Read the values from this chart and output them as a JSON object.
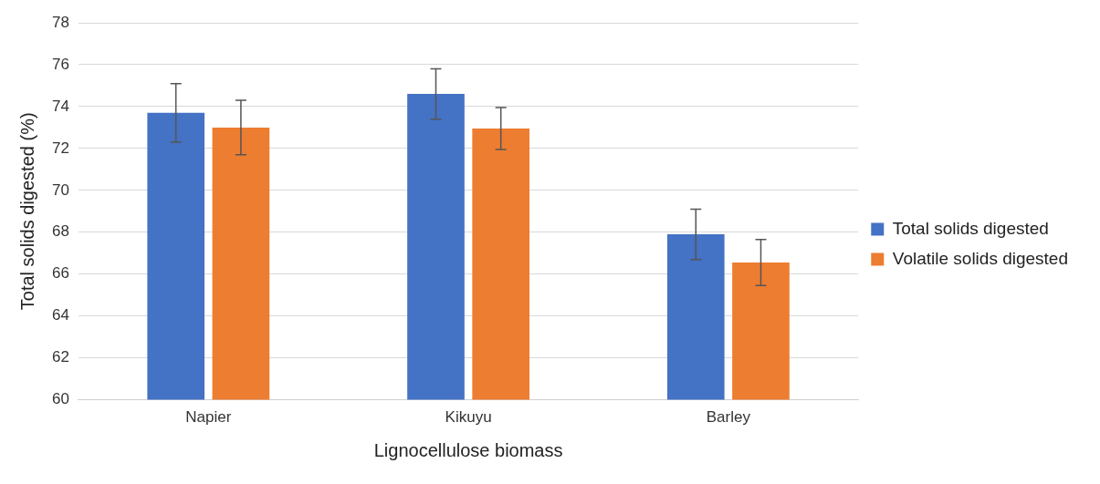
{
  "chart_data": {
    "type": "bar",
    "xlabel": "Lignocellulose biomass",
    "ylabel": "Total solids digested (%)",
    "categories": [
      "Napier",
      "Kikuyu",
      "Barley"
    ],
    "series": [
      {
        "name": "Total solids digested",
        "color": "#4472c4",
        "values": [
          73.7,
          74.6,
          67.9
        ],
        "errors": [
          1.4,
          1.2,
          1.2
        ]
      },
      {
        "name": "Volatile solids digested",
        "color": "#ed7d31",
        "values": [
          73.0,
          72.95,
          66.55
        ],
        "errors": [
          1.3,
          1.0,
          1.1
        ]
      }
    ],
    "ylim": [
      60,
      78
    ],
    "yticks": [
      60,
      62,
      64,
      66,
      68,
      70,
      72,
      74,
      76,
      78
    ],
    "grid": "y",
    "legend": "right"
  }
}
